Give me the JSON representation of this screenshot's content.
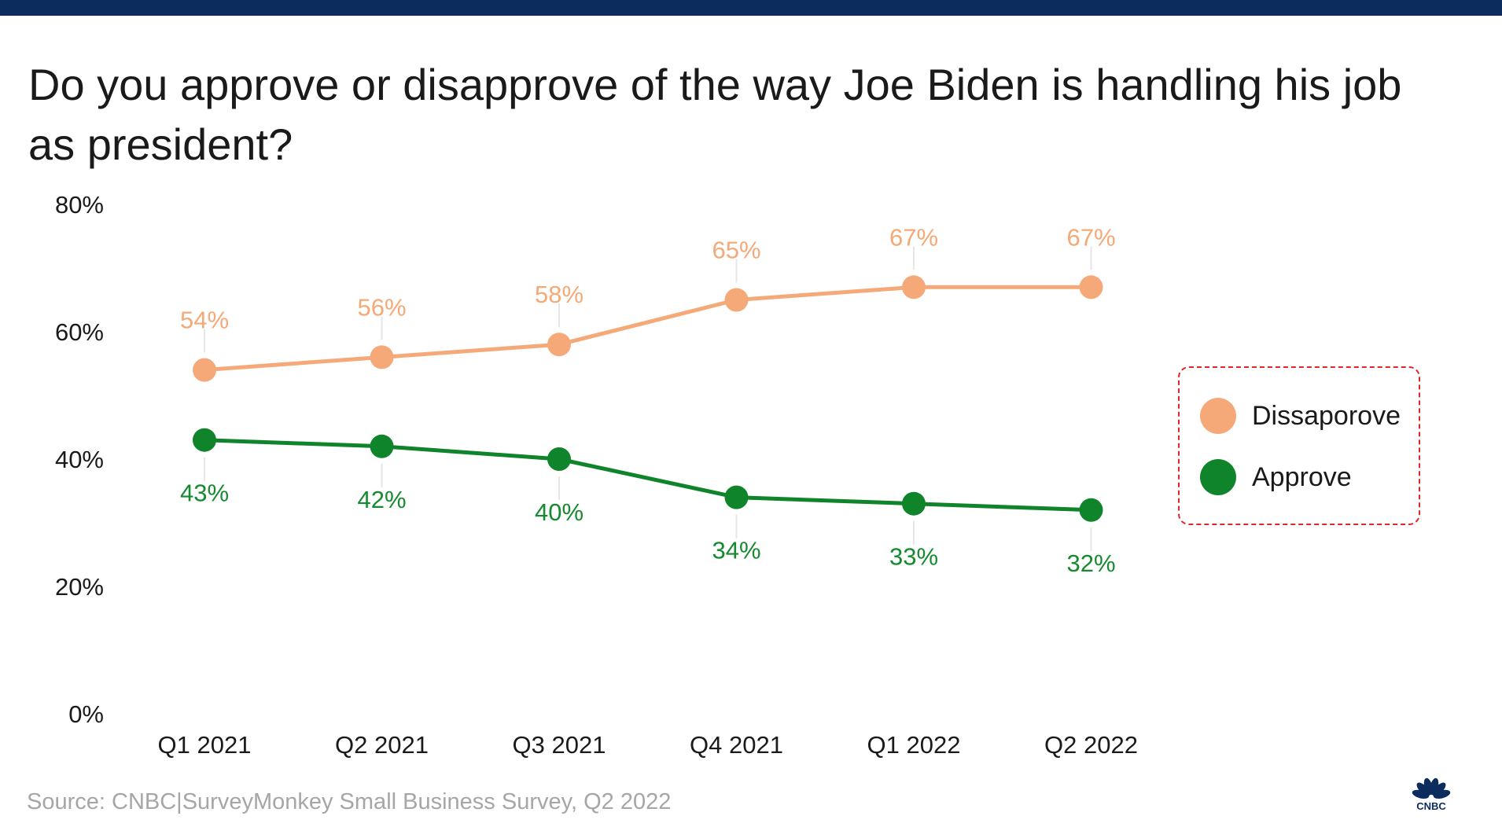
{
  "chart_data": {
    "type": "line",
    "title": "Do you approve or disapprove of the way Joe Biden is handling his job as president?",
    "categories": [
      "Q1 2021",
      "Q2 2021",
      "Q3 2021",
      "Q4 2021",
      "Q1 2022",
      "Q2 2022"
    ],
    "series": [
      {
        "name": "Dissaporove",
        "color": "#f6a978",
        "label_color": "#f4a977",
        "values": [
          54,
          56,
          58,
          65,
          67,
          67
        ],
        "labels": [
          "54%",
          "56%",
          "58%",
          "65%",
          "67%",
          "67%"
        ]
      },
      {
        "name": "Approve",
        "color": "#10842a",
        "label_color": "#158a2f",
        "values": [
          43,
          42,
          40,
          34,
          33,
          32
        ],
        "labels": [
          "43%",
          "42%",
          "40%",
          "34%",
          "33%",
          "32%"
        ]
      }
    ],
    "ylim": [
      0,
      80
    ],
    "yticks": [
      "0%",
      "20%",
      "40%",
      "60%",
      "80%"
    ],
    "ytick_values": [
      0,
      20,
      40,
      60,
      80
    ],
    "legend_position": "right",
    "grid": false
  },
  "source": "Source: CNBC|SurveyMonkey Small Business Survey, Q2 2022",
  "logo": {
    "icon": "cnbc-peacock-icon",
    "text": "CNBC"
  },
  "colors": {
    "top_bar": "#0c2c5e",
    "legend_border": "#e0262a"
  }
}
